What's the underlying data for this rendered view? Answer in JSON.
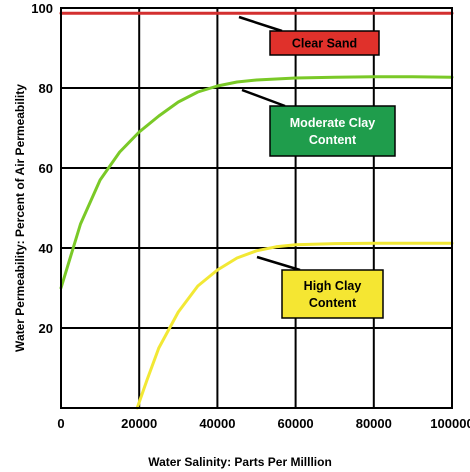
{
  "chart_data": {
    "type": "line",
    "xlabel": "Water Salinity: Parts Per Milllion",
    "ylabel": "Water Permeability: Percent of Air Permeability",
    "xlim": [
      0,
      100000
    ],
    "ylim": [
      0,
      100
    ],
    "x_ticks": [
      0,
      20000,
      40000,
      60000,
      80000,
      100000
    ],
    "y_ticks": [
      20,
      40,
      60,
      80,
      100
    ],
    "x_tick_labels": [
      "0",
      "20000",
      "40000",
      "60000",
      "80000",
      "100000"
    ],
    "y_tick_labels": [
      "20",
      "40",
      "60",
      "80",
      "100"
    ],
    "grid": true,
    "series": [
      {
        "name": "Clear Sand",
        "color": "#d32f2f",
        "x": [
          0,
          20000,
          40000,
          60000,
          80000,
          100000
        ],
        "y": [
          98.7,
          98.7,
          98.7,
          98.7,
          98.7,
          98.7
        ]
      },
      {
        "name": "Moderate Clay Content",
        "color": "#7ac927",
        "x": [
          0,
          5000,
          10000,
          15000,
          20000,
          25000,
          30000,
          35000,
          40000,
          45000,
          50000,
          60000,
          70000,
          80000,
          90000,
          100000
        ],
        "y": [
          30,
          46,
          57,
          64,
          69,
          73,
          76.5,
          79,
          80.5,
          81.5,
          82,
          82.5,
          82.7,
          82.8,
          82.8,
          82.7
        ]
      },
      {
        "name": "High Clay Content",
        "color": "#f2e835",
        "x": [
          19500,
          22000,
          25000,
          30000,
          35000,
          40000,
          45000,
          50000,
          55000,
          60000,
          70000,
          80000,
          90000,
          100000
        ],
        "y": [
          0,
          7,
          15,
          24,
          30.5,
          34.5,
          37.5,
          39.3,
          40.3,
          40.8,
          41.1,
          41.2,
          41.2,
          41.2
        ]
      }
    ],
    "annotations": [
      {
        "series": "Clear Sand",
        "text": "Clear Sand",
        "fill": "#e0312b",
        "text_color": "#000000"
      },
      {
        "series": "Moderate Clay Content",
        "text_lines": [
          "Moderate Clay",
          "Content"
        ],
        "fill": "#1f9d4c",
        "text_color": "#ffffff"
      },
      {
        "series": "High Clay Content",
        "text_lines": [
          "High Clay",
          "Content"
        ],
        "fill": "#f5e632",
        "text_color": "#000000"
      }
    ]
  }
}
